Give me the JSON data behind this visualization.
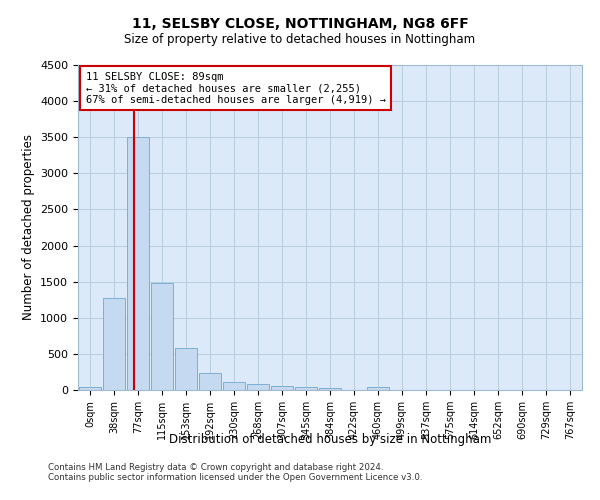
{
  "title1": "11, SELSBY CLOSE, NOTTINGHAM, NG8 6FF",
  "title2": "Size of property relative to detached houses in Nottingham",
  "xlabel": "Distribution of detached houses by size in Nottingham",
  "ylabel": "Number of detached properties",
  "bin_labels": [
    "0sqm",
    "38sqm",
    "77sqm",
    "115sqm",
    "153sqm",
    "192sqm",
    "230sqm",
    "268sqm",
    "307sqm",
    "345sqm",
    "384sqm",
    "422sqm",
    "460sqm",
    "499sqm",
    "537sqm",
    "575sqm",
    "614sqm",
    "652sqm",
    "690sqm",
    "729sqm",
    "767sqm"
  ],
  "bar_heights": [
    40,
    1280,
    3500,
    1480,
    580,
    240,
    115,
    80,
    50,
    45,
    30,
    0,
    45,
    0,
    0,
    0,
    0,
    0,
    0,
    0,
    0
  ],
  "bar_color": "#c5d9f1",
  "bar_edgecolor": "#7bafd4",
  "vline_color": "#cc0000",
  "vline_x": 1.82,
  "annotation_text": "11 SELSBY CLOSE: 89sqm\n← 31% of detached houses are smaller (2,255)\n67% of semi-detached houses are larger (4,919) →",
  "annotation_box_color": "#ffffff",
  "annotation_box_edgecolor": "#cc0000",
  "ylim": [
    0,
    4500
  ],
  "yticks": [
    0,
    500,
    1000,
    1500,
    2000,
    2500,
    3000,
    3500,
    4000,
    4500
  ],
  "footer1": "Contains HM Land Registry data © Crown copyright and database right 2024.",
  "footer2": "Contains public sector information licensed under the Open Government Licence v3.0.",
  "bg_color": "#dce9f8",
  "grid_color": "#b8cde0"
}
